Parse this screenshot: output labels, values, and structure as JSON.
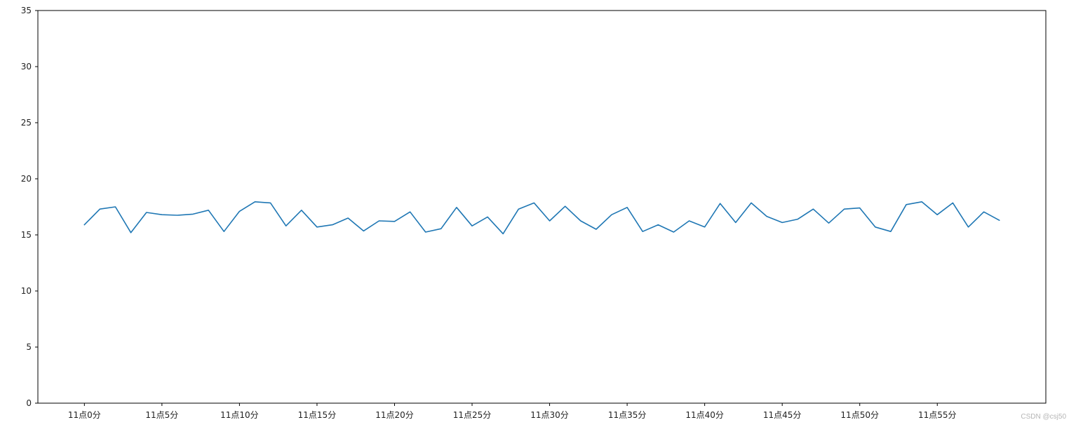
{
  "chart_data": {
    "type": "line",
    "title": "",
    "xlabel": "",
    "ylabel": "",
    "xlim": [
      -3,
      62
    ],
    "ylim": [
      0,
      35
    ],
    "grid": false,
    "x_tick_values": [
      0,
      5,
      10,
      15,
      20,
      25,
      30,
      35,
      40,
      45,
      50,
      55
    ],
    "x_tick_labels": [
      "11点0分",
      "11点5分",
      "11点10分",
      "11点15分",
      "11点20分",
      "11点25分",
      "11点30分",
      "11点35分",
      "11点40分",
      "11点45分",
      "11点50分",
      "11点55分"
    ],
    "y_ticks": [
      0,
      5,
      10,
      15,
      20,
      25,
      30,
      35
    ],
    "series": [
      {
        "color": "#1f77b4",
        "values": [
          15.9,
          17.3,
          17.5,
          15.2,
          17.0,
          16.8,
          16.75,
          16.85,
          17.2,
          15.3,
          17.1,
          17.95,
          17.85,
          15.8,
          17.2,
          15.7,
          15.9,
          16.5,
          15.35,
          16.25,
          16.2,
          17.05,
          15.25,
          15.55,
          17.45,
          15.8,
          16.6,
          15.1,
          17.3,
          17.85,
          16.25,
          17.55,
          16.25,
          15.5,
          16.8,
          17.45,
          15.3,
          15.9,
          15.25,
          16.25,
          15.7,
          17.8,
          16.1,
          17.85,
          16.65,
          16.1,
          16.4,
          17.3,
          16.05,
          17.3,
          17.4,
          15.7,
          15.3,
          17.7,
          17.95,
          16.8,
          17.85,
          15.7,
          17.05,
          16.3
        ]
      }
    ]
  },
  "watermark": "CSDN @csj50"
}
